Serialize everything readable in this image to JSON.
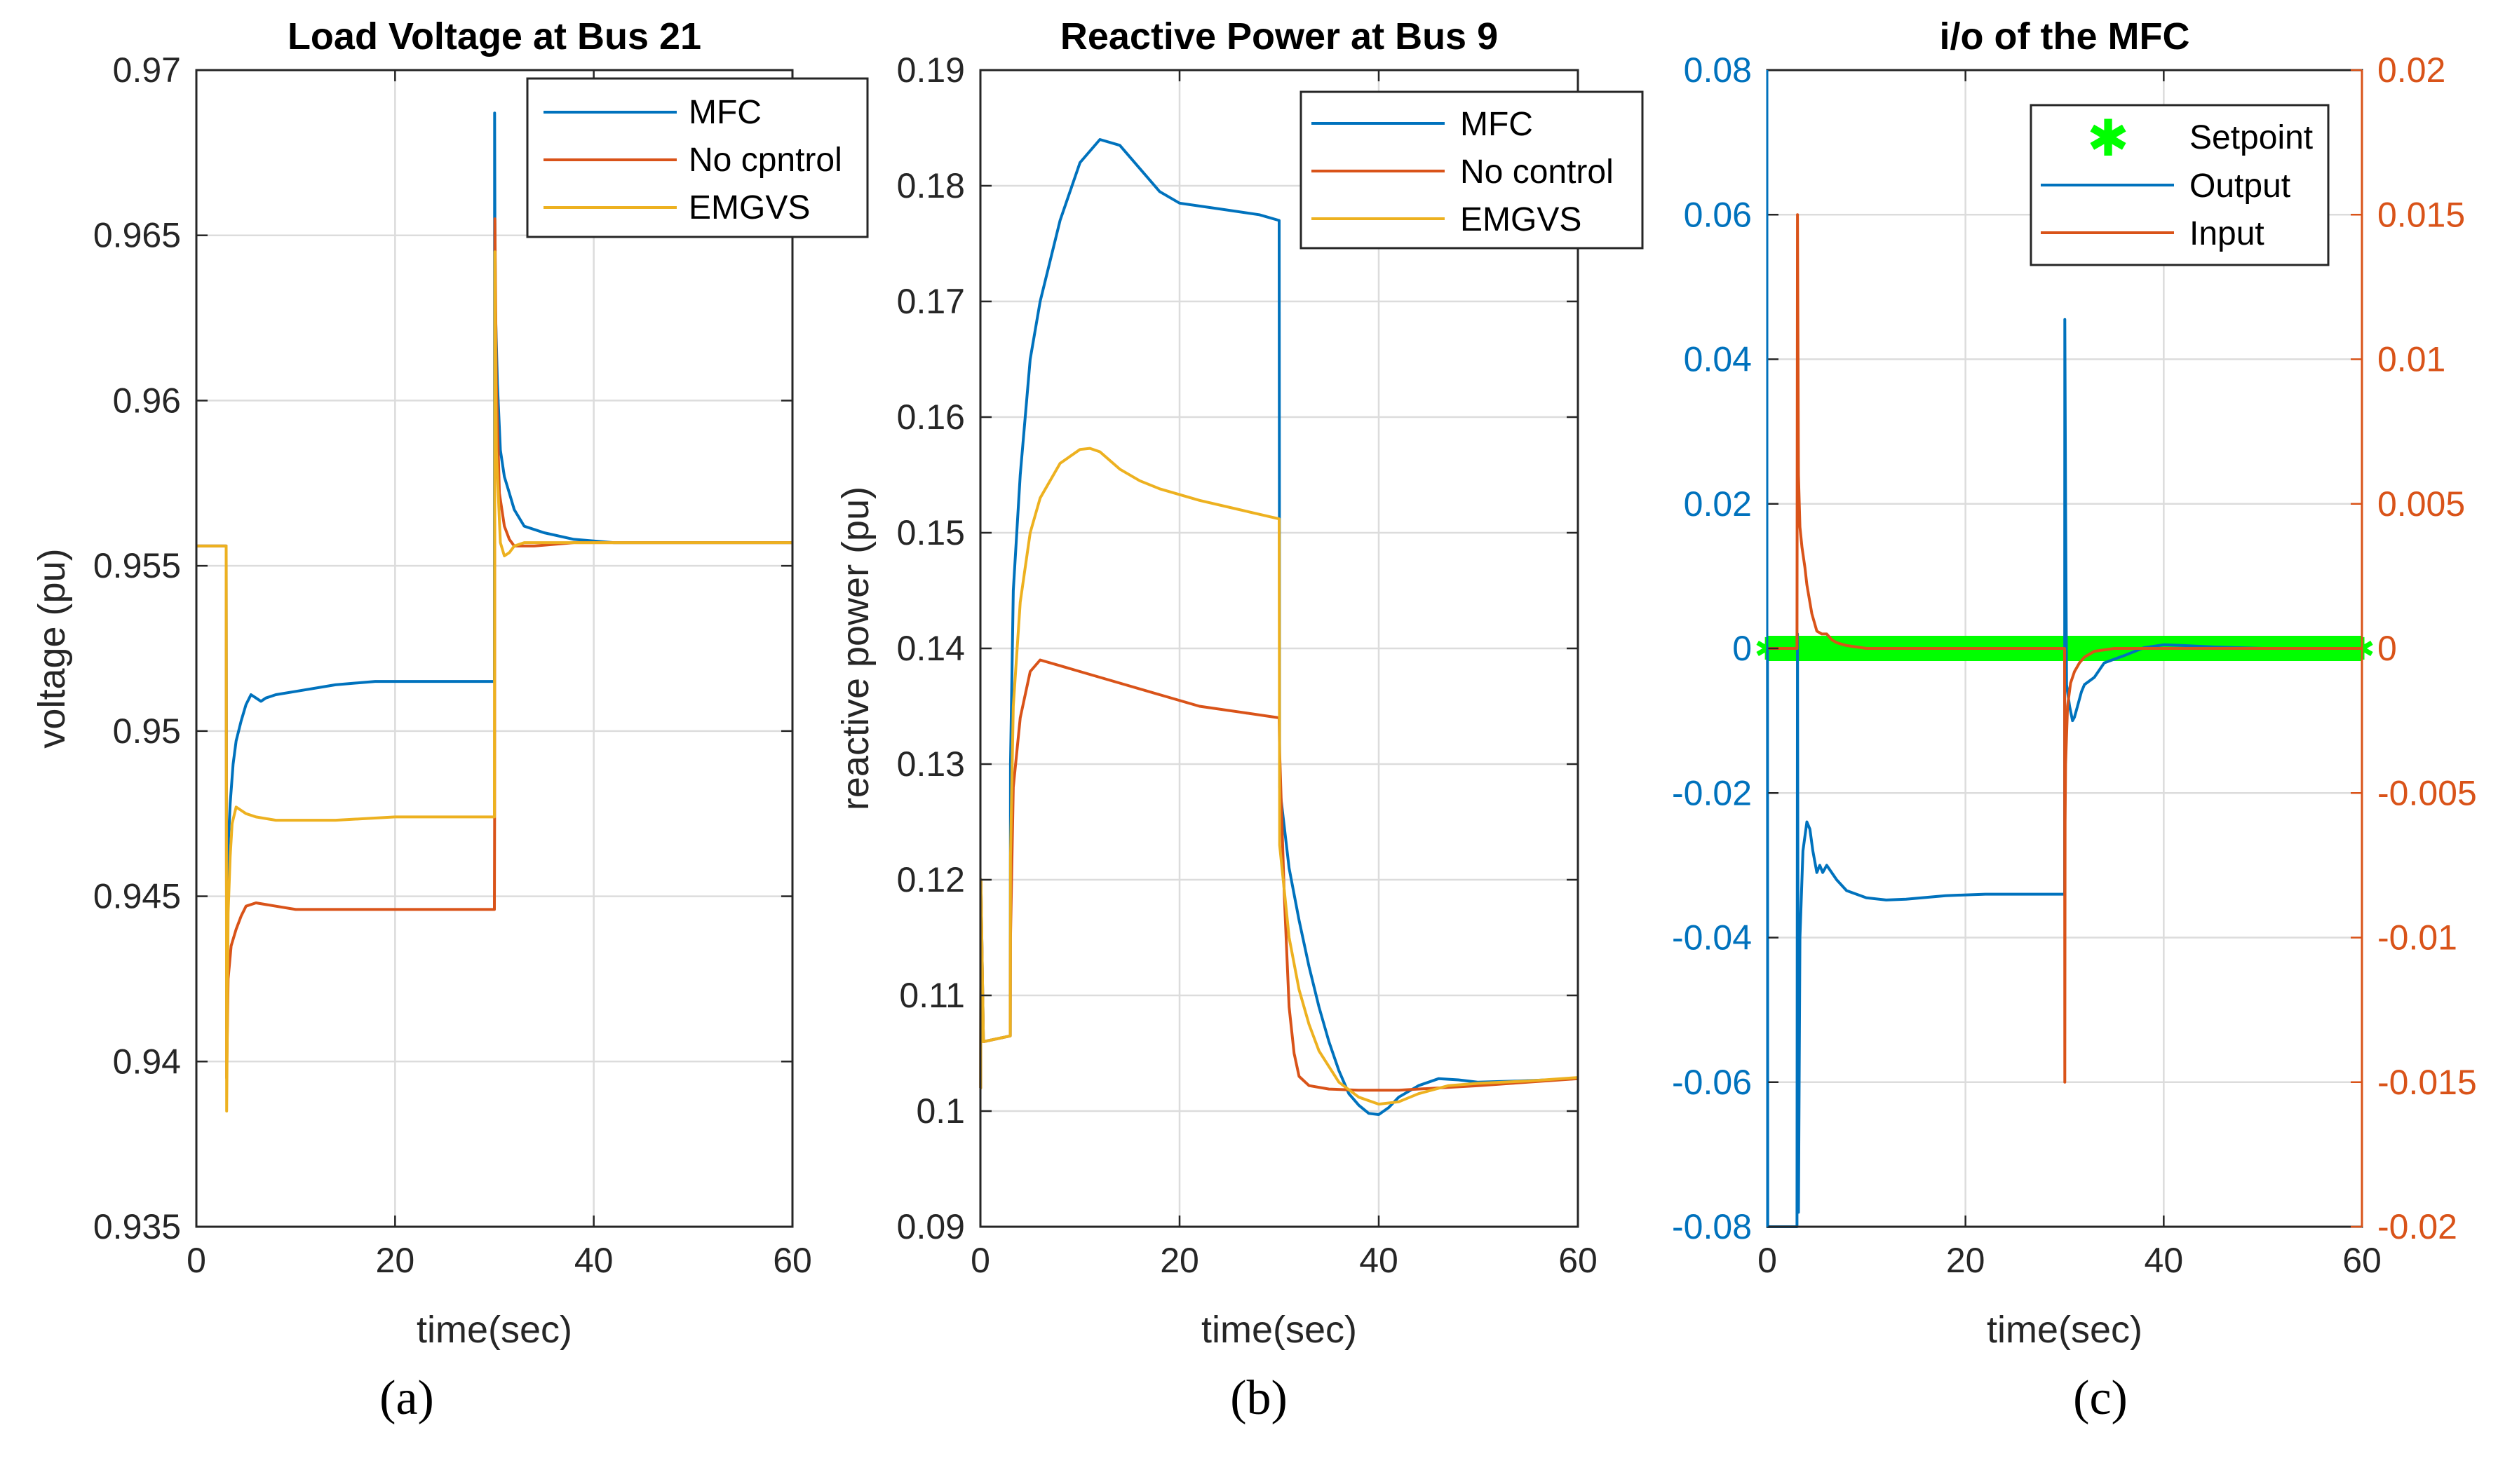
{
  "chart_data": [
    {
      "id": "a",
      "type": "line",
      "title": "Load Voltage at Bus 21",
      "xlabel": "time(sec)",
      "ylabel": "voltage (pu)",
      "xlim": [
        0,
        60
      ],
      "ylim": [
        0.935,
        0.97
      ],
      "xticks": [
        0,
        20,
        40,
        60
      ],
      "xtick_labels": [
        "0",
        "20",
        "40",
        "60"
      ],
      "yticks": [
        0.935,
        0.94,
        0.945,
        0.95,
        0.955,
        0.96,
        0.965,
        0.97
      ],
      "ytick_labels": [
        "0.935",
        "0.94",
        "0.945",
        "0.95",
        "0.955",
        "0.96",
        "0.965",
        "0.97"
      ],
      "grid": true,
      "legend_position": "top-right",
      "panel_label": "(a)",
      "series": [
        {
          "name": "MFC",
          "color": "#0072BD",
          "x": [
            0,
            3,
            3.05,
            3.2,
            3.4,
            3.7,
            4,
            4.5,
            5,
            5.5,
            6,
            6.5,
            7,
            8,
            10,
            14,
            18,
            22,
            26,
            30,
            30.02,
            30.05,
            30.1,
            30.3,
            30.6,
            31,
            31.5,
            32,
            33,
            35,
            38,
            42,
            50,
            60
          ],
          "y": [
            0.9556,
            0.9556,
            0.941,
            0.9465,
            0.9478,
            0.949,
            0.9497,
            0.9503,
            0.9508,
            0.9511,
            0.951,
            0.9509,
            0.951,
            0.9511,
            0.9512,
            0.9514,
            0.9515,
            0.9515,
            0.9515,
            0.9515,
            0.9687,
            0.9655,
            0.9628,
            0.9605,
            0.9585,
            0.9577,
            0.9572,
            0.9567,
            0.9562,
            0.956,
            0.9558,
            0.9557,
            0.9557,
            0.9557
          ]
        },
        {
          "name": "No cpntrol",
          "color": "#D95319",
          "x": [
            0,
            3,
            3.05,
            3.2,
            3.5,
            4,
            4.5,
            5,
            6,
            8,
            10,
            14,
            20,
            26,
            30,
            30.02,
            30.05,
            30.2,
            30.5,
            31,
            31.5,
            32,
            34,
            38,
            45,
            60
          ],
          "y": [
            0.9556,
            0.9556,
            0.9395,
            0.9425,
            0.9435,
            0.944,
            0.9444,
            0.9447,
            0.9448,
            0.9447,
            0.9446,
            0.9446,
            0.9446,
            0.9446,
            0.9446,
            0.9473,
            0.9655,
            0.9605,
            0.9572,
            0.9562,
            0.9558,
            0.9556,
            0.9556,
            0.9557,
            0.9557,
            0.9557
          ]
        },
        {
          "name": "EMGVS",
          "color": "#EDB120",
          "x": [
            0,
            3,
            3.05,
            3.2,
            3.4,
            3.6,
            4,
            4.5,
            5,
            6,
            8,
            10,
            14,
            20,
            26,
            30,
            30.02,
            30.05,
            30.2,
            30.6,
            31,
            31.5,
            32,
            33,
            35,
            40,
            60
          ],
          "y": [
            0.9556,
            0.9556,
            0.9385,
            0.9445,
            0.9462,
            0.9472,
            0.9477,
            0.9476,
            0.9475,
            0.9474,
            0.9473,
            0.9473,
            0.9473,
            0.9474,
            0.9474,
            0.9474,
            0.954,
            0.9645,
            0.9585,
            0.9557,
            0.9553,
            0.9554,
            0.9556,
            0.9557,
            0.9557,
            0.9557,
            0.9557
          ]
        }
      ]
    },
    {
      "id": "b",
      "type": "line",
      "title": "Reactive Power at Bus 9",
      "xlabel": "time(sec)",
      "ylabel": "reactive power (pu)",
      "xlim": [
        0,
        60
      ],
      "ylim": [
        0.09,
        0.19
      ],
      "xticks": [
        0,
        20,
        40,
        60
      ],
      "xtick_labels": [
        "0",
        "20",
        "40",
        "60"
      ],
      "yticks": [
        0.09,
        0.1,
        0.11,
        0.12,
        0.13,
        0.14,
        0.15,
        0.16,
        0.17,
        0.18,
        0.19
      ],
      "ytick_labels": [
        "0.09",
        "0.1",
        "0.11",
        "0.12",
        "0.13",
        "0.14",
        "0.15",
        "0.16",
        "0.17",
        "0.18",
        "0.19"
      ],
      "grid": true,
      "legend_position": "top-right",
      "panel_label": "(b)",
      "series": [
        {
          "name": "MFC",
          "color": "#0072BD",
          "x": [
            0,
            0.02,
            0.05,
            0.3,
            3,
            3.02,
            3.3,
            4,
            5,
            6,
            8,
            10,
            12,
            14,
            16,
            18,
            20,
            24,
            28,
            30,
            30.05,
            31,
            32,
            33,
            34,
            35,
            36,
            37,
            38,
            39,
            40,
            41,
            42,
            44,
            46,
            48,
            50,
            54,
            60
          ],
          "y": [
            0.102,
            0.102,
            0.12,
            0.106,
            0.1065,
            0.13,
            0.145,
            0.155,
            0.165,
            0.17,
            0.177,
            0.182,
            0.184,
            0.1835,
            0.1815,
            0.1795,
            0.1785,
            0.178,
            0.1775,
            0.177,
            0.128,
            0.121,
            0.1165,
            0.1125,
            0.109,
            0.106,
            0.1035,
            0.1015,
            0.1005,
            0.0998,
            0.0997,
            0.1003,
            0.1012,
            0.1022,
            0.1028,
            0.1027,
            0.1025,
            0.1026,
            0.1028
          ]
        },
        {
          "name": "No control",
          "color": "#D95319",
          "x": [
            0,
            0.02,
            0.05,
            0.3,
            3,
            3.02,
            3.3,
            4,
            5,
            6,
            8,
            10,
            14,
            18,
            22,
            26,
            30,
            30.05,
            30.5,
            31,
            31.5,
            32,
            33,
            35,
            38,
            42,
            50,
            60
          ],
          "y": [
            0.102,
            0.102,
            0.12,
            0.106,
            0.1065,
            0.115,
            0.128,
            0.134,
            0.138,
            0.139,
            0.1385,
            0.138,
            0.137,
            0.136,
            0.135,
            0.1345,
            0.134,
            0.131,
            0.119,
            0.109,
            0.105,
            0.103,
            0.1022,
            0.1019,
            0.1018,
            0.1018,
            0.1022,
            0.1028
          ]
        },
        {
          "name": "EMGVS",
          "color": "#EDB120",
          "x": [
            0,
            0.02,
            0.05,
            0.3,
            3,
            3.02,
            3.3,
            4,
            5,
            6,
            8,
            10,
            11,
            12,
            14,
            16,
            18,
            22,
            26,
            30,
            30.05,
            31,
            32,
            33,
            34,
            36,
            38,
            40,
            42,
            44,
            47,
            50,
            55,
            60
          ],
          "y": [
            0.102,
            0.102,
            0.12,
            0.106,
            0.1065,
            0.122,
            0.135,
            0.144,
            0.15,
            0.153,
            0.156,
            0.1572,
            0.1573,
            0.157,
            0.1555,
            0.1545,
            0.1538,
            0.1528,
            0.152,
            0.1512,
            0.123,
            0.115,
            0.1105,
            0.1075,
            0.1052,
            0.1025,
            0.1012,
            0.1006,
            0.1008,
            0.1015,
            0.1022,
            0.1024,
            0.1026,
            0.1029
          ]
        }
      ]
    },
    {
      "id": "c",
      "type": "line",
      "title": "i/o of the MFC",
      "xlabel": "time(sec)",
      "xlim": [
        0,
        60
      ],
      "ylim_left": [
        -0.08,
        0.08
      ],
      "ylim_right": [
        -0.02,
        0.02
      ],
      "xticks": [
        0,
        20,
        40,
        60
      ],
      "xtick_labels": [
        "0",
        "20",
        "40",
        "60"
      ],
      "yticks_left": [
        -0.08,
        -0.06,
        -0.04,
        -0.02,
        0,
        0.02,
        0.04,
        0.06,
        0.08
      ],
      "ytick_labels_left": [
        "-0.08",
        "-0.06",
        "-0.04",
        "-0.02",
        "0",
        "0.02",
        "0.04",
        "0.06",
        "0.08"
      ],
      "yticks_right": [
        -0.02,
        -0.015,
        -0.01,
        -0.005,
        0,
        0.005,
        0.01,
        0.015,
        0.02
      ],
      "ytick_labels_right": [
        "-0.02",
        "-0.015",
        "-0.01",
        "-0.005",
        "0",
        "0.005",
        "0.01",
        "0.015",
        "0.02"
      ],
      "left_axis_color": "#0072BD",
      "right_axis_color": "#D95319",
      "grid": true,
      "legend_position": "top-right",
      "panel_label": "(c)",
      "series": [
        {
          "name": "Setpoint",
          "color": "#00FF00",
          "marker": "*",
          "axis": "left",
          "x": [
            0,
            60
          ],
          "y": [
            0,
            0
          ]
        },
        {
          "name": "Output",
          "color": "#0072BD",
          "axis": "left",
          "x": [
            0,
            0.02,
            0.05,
            3,
            3.05,
            3.15,
            3.3,
            3.6,
            4,
            4.3,
            4.6,
            5,
            5.3,
            5.6,
            6,
            6.5,
            7,
            8,
            10,
            12,
            14,
            18,
            22,
            26,
            30,
            30.02,
            30.1,
            30.2,
            30.5,
            30.8,
            31,
            31.3,
            31.7,
            32,
            33,
            34,
            36,
            38,
            40,
            42,
            45,
            50,
            60
          ],
          "y": [
            0,
            0,
            -0.08,
            -0.08,
            0.002,
            -0.078,
            -0.04,
            -0.028,
            -0.024,
            -0.025,
            -0.028,
            -0.031,
            -0.03,
            -0.031,
            -0.03,
            -0.031,
            -0.032,
            -0.0335,
            -0.0345,
            -0.0348,
            -0.0347,
            -0.0342,
            -0.034,
            -0.034,
            -0.034,
            0.0455,
            0.02,
            -0.005,
            -0.008,
            -0.01,
            -0.0095,
            -0.008,
            -0.006,
            -0.005,
            -0.004,
            -0.002,
            -0.001,
            0.0001,
            0.0005,
            0.0004,
            0.0002,
            0,
            0
          ]
        },
        {
          "name": "Input",
          "color": "#D95319",
          "axis": "right",
          "x": [
            0,
            3,
            3.05,
            3.15,
            3.3,
            3.5,
            3.8,
            4,
            4.5,
            5,
            5.5,
            6,
            6.5,
            7,
            8,
            10,
            14,
            20,
            26,
            30,
            30.02,
            30.05,
            30.1,
            30.3,
            30.6,
            31,
            31.5,
            32,
            33,
            35,
            38,
            42,
            50,
            60
          ],
          "y": [
            0,
            0,
            0.015,
            0.006,
            0.0042,
            0.0035,
            0.0028,
            0.0022,
            0.0012,
            0.0006,
            0.0005,
            0.0005,
            0.0003,
            0.0002,
            0.0001,
            0,
            0,
            0,
            0,
            0,
            -0.015,
            -0.006,
            -0.004,
            -0.002,
            -0.0012,
            -0.0008,
            -0.0005,
            -0.0003,
            -0.0001,
            0,
            0,
            0,
            0,
            0
          ]
        }
      ]
    }
  ]
}
